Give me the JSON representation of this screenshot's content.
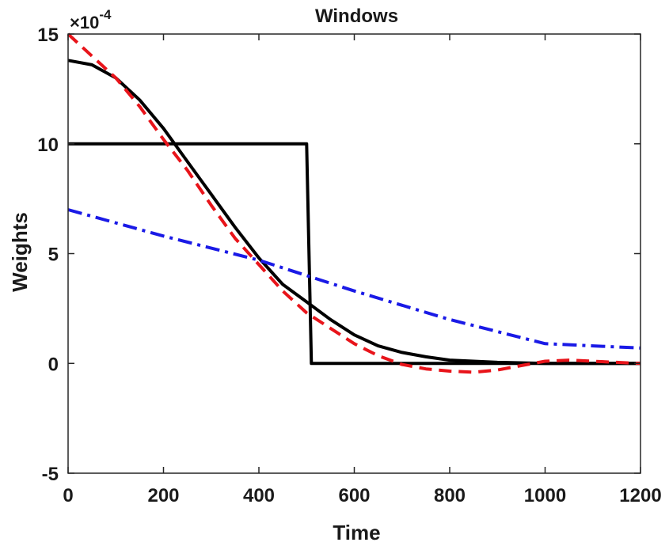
{
  "chart_data": {
    "type": "line",
    "title": "Windows",
    "xlabel": "Time",
    "ylabel": "Weights",
    "y_multiplier": "×10",
    "y_exponent": "-4",
    "xlim": [
      0,
      1200
    ],
    "ylim": [
      -5,
      15
    ],
    "xticks": [
      0,
      200,
      400,
      600,
      800,
      1000,
      1200
    ],
    "yticks": [
      -5,
      0,
      5,
      10,
      15
    ],
    "grid": false,
    "series": [
      {
        "style": "solid-black-rect",
        "color": "#000000",
        "dash": "",
        "x": [
          0,
          500,
          510,
          1200
        ],
        "y": [
          10,
          10,
          0,
          0
        ]
      },
      {
        "style": "solid-black-smooth",
        "color": "#000000",
        "dash": "",
        "x": [
          0,
          50,
          100,
          150,
          200,
          250,
          300,
          350,
          400,
          450,
          500,
          550,
          600,
          650,
          700,
          750,
          800,
          900,
          1000,
          1100,
          1200
        ],
        "y": [
          13.8,
          13.6,
          13.0,
          12.0,
          10.7,
          9.2,
          7.7,
          6.2,
          4.8,
          3.6,
          2.8,
          2.0,
          1.3,
          0.8,
          0.5,
          0.3,
          0.15,
          0.05,
          0.0,
          0.0,
          0.0
        ]
      },
      {
        "style": "dashed-red",
        "color": "#e8141a",
        "dash": "16,9",
        "x": [
          0,
          50,
          100,
          150,
          200,
          250,
          300,
          350,
          400,
          450,
          500,
          550,
          600,
          650,
          700,
          750,
          800,
          850,
          900,
          950,
          1000,
          1050,
          1100,
          1150,
          1200
        ],
        "y": [
          15.0,
          14.0,
          13.0,
          11.7,
          10.2,
          8.8,
          7.2,
          5.7,
          4.5,
          3.3,
          2.3,
          1.6,
          0.9,
          0.35,
          -0.05,
          -0.25,
          -0.35,
          -0.4,
          -0.3,
          -0.1,
          0.1,
          0.15,
          0.1,
          0.05,
          0.0
        ]
      },
      {
        "style": "dashdot-blue",
        "color": "#1a1ae6",
        "dash": "18,7,4,7",
        "x": [
          0,
          200,
          400,
          600,
          800,
          1000,
          1200
        ],
        "y": [
          7.0,
          5.8,
          4.7,
          3.3,
          2.0,
          0.9,
          0.7
        ]
      }
    ]
  }
}
